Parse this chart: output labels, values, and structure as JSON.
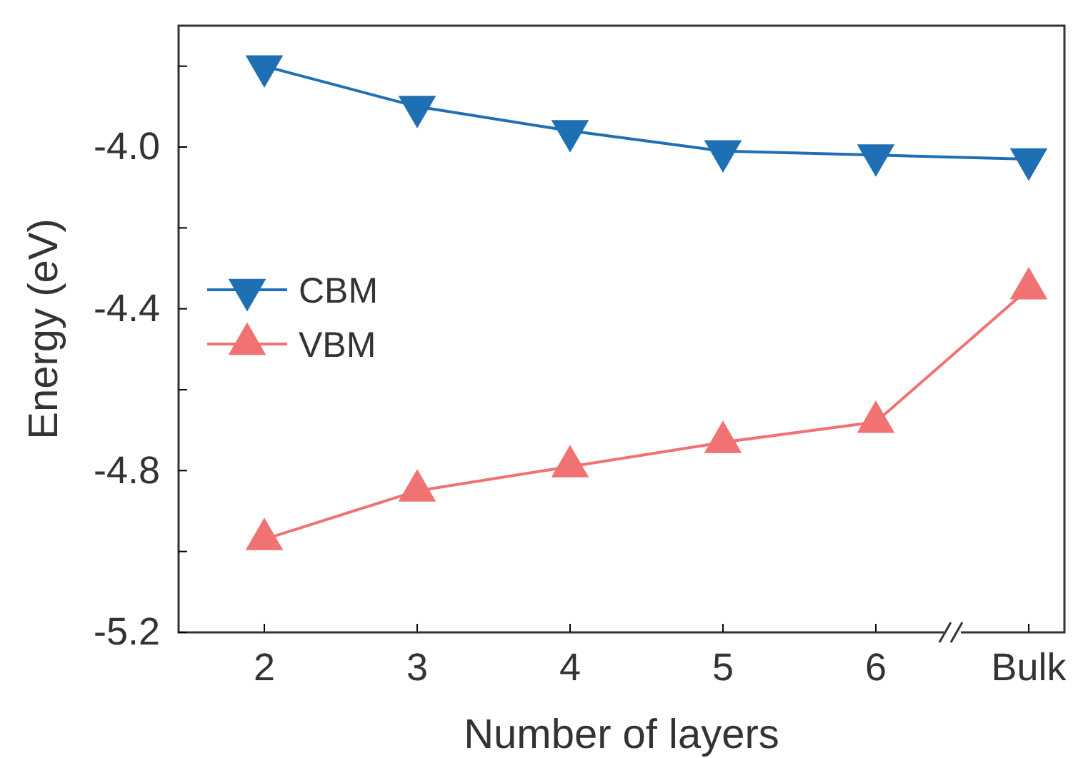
{
  "chart_data": {
    "type": "line",
    "xlabel": "Number of layers",
    "ylabel": "Energy (eV)",
    "categories": [
      "2",
      "3",
      "4",
      "5",
      "6",
      "Bulk"
    ],
    "series": [
      {
        "name": "CBM",
        "color": "#1f6fb5",
        "marker": "triangle-down",
        "values": [
          -3.8,
          -3.9,
          -3.96,
          -4.01,
          -4.02,
          -4.03
        ]
      },
      {
        "name": "VBM",
        "color": "#f07272",
        "marker": "triangle",
        "values": [
          -4.97,
          -4.85,
          -4.79,
          -4.73,
          -4.68,
          -4.35
        ]
      }
    ],
    "ylim": [
      -5.2,
      -3.7
    ],
    "yticks": [
      -5.2,
      {
        "value": -5.0,
        "label": null
      },
      -4.8,
      {
        "value": -4.6,
        "label": null
      },
      -4.4,
      {
        "value": -4.2,
        "label": null
      },
      {
        "value": -4.0,
        "label": "-4.0"
      },
      {
        "value": -3.8,
        "label": null
      }
    ],
    "legend": "left",
    "grid": false
  }
}
